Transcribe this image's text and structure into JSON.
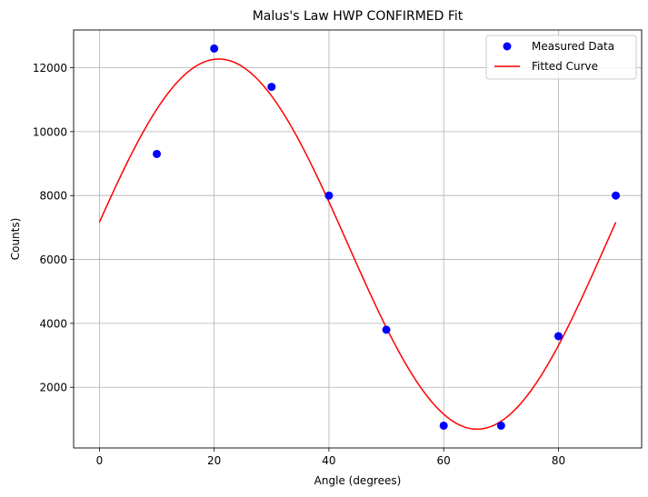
{
  "chart_data": {
    "type": "scatter",
    "title": "Malus's Law HWP CONFIRMED Fit",
    "xlabel": "Angle (degrees)",
    "ylabel": "Counts)",
    "xlim": [
      -4.5,
      94.5
    ],
    "ylim": [
      102,
      13180
    ],
    "xticks": [
      0,
      20,
      40,
      60,
      80
    ],
    "yticks": [
      2000,
      4000,
      6000,
      8000,
      10000,
      12000
    ],
    "grid": true,
    "legend_position": "top-right",
    "series": [
      {
        "name": "Measured Data",
        "kind": "points",
        "color": "#0000ff",
        "x": [
          10,
          20,
          30,
          40,
          50,
          60,
          70,
          80,
          90
        ],
        "y": [
          9300,
          12600,
          11400,
          8000,
          3800,
          800,
          800,
          3600,
          8000
        ]
      },
      {
        "name": "Fitted Curve",
        "kind": "line",
        "color": "#ff0000",
        "function": "offset + amplitude*cos(4*(x - phase_deg))",
        "offset": 6480,
        "amplitude": 5790,
        "phase_deg": 20.8,
        "x_range": [
          0,
          90
        ]
      }
    ]
  }
}
